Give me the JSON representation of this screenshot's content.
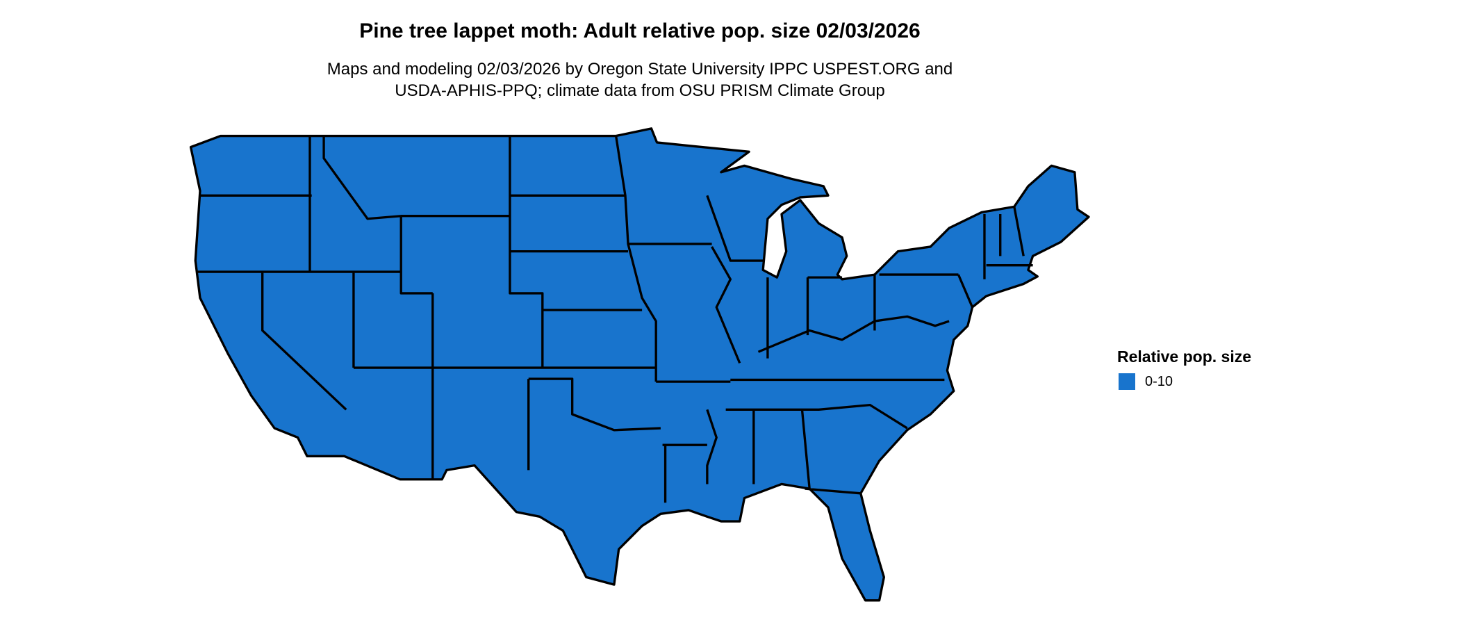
{
  "title": "Pine tree lappet moth: Adult relative pop. size 02/03/2026",
  "subtitle_lines": [
    "Maps and modeling 02/03/2026 by Oregon State University IPPC USPEST.ORG and",
    "USDA-APHIS-PPQ; climate data from OSU PRISM Climate Group"
  ],
  "map": {
    "region": "contiguous United States, state boundaries",
    "fill_color": "#1874CD",
    "border_color": "#000000"
  },
  "legend": {
    "title": "Relative pop. size",
    "items": [
      {
        "label": "0-10",
        "color": "#1874CD"
      }
    ]
  }
}
